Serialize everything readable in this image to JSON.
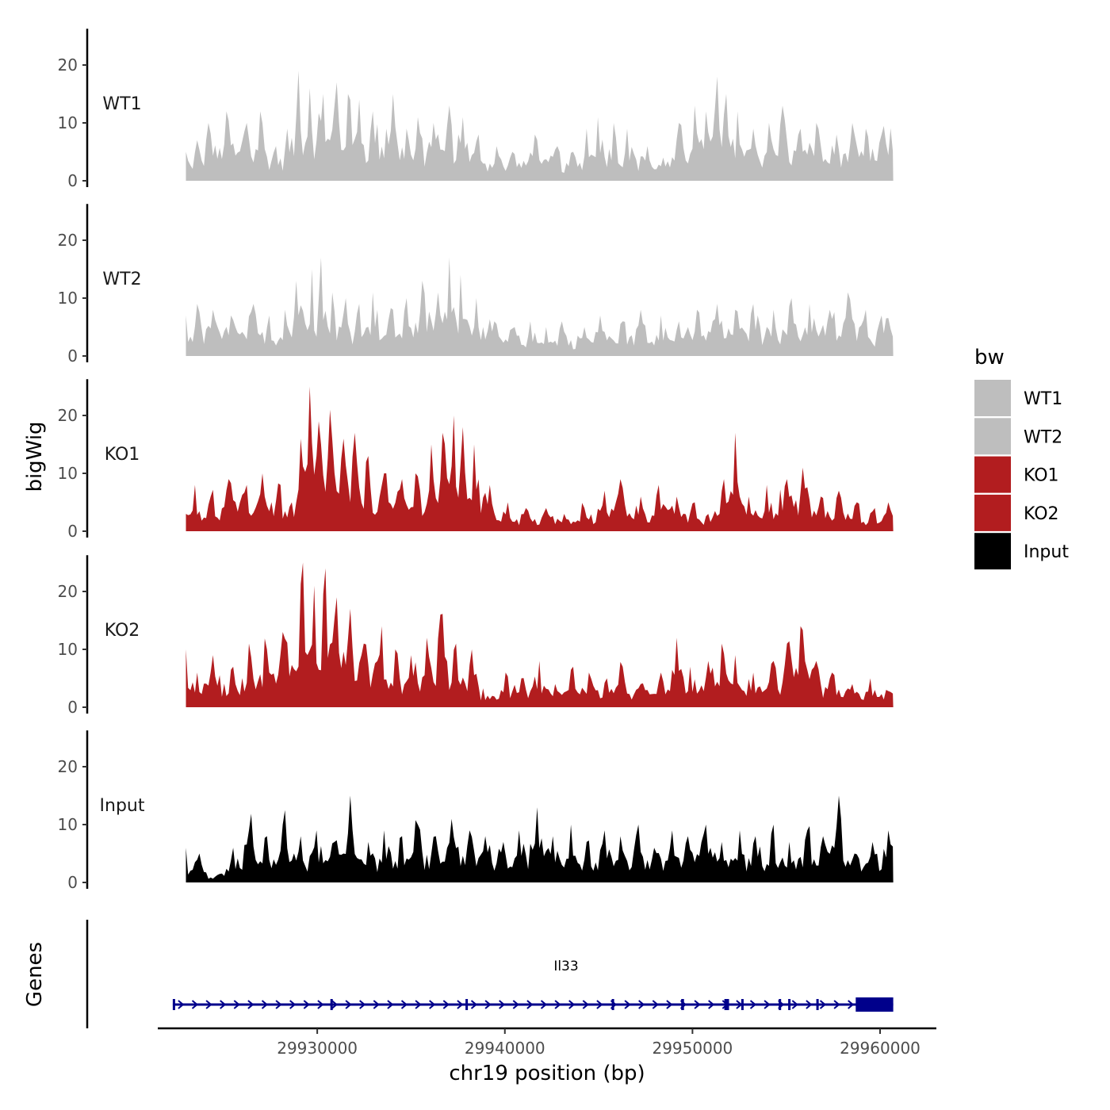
{
  "chart_data": {
    "type": "area",
    "title": "",
    "ylabel": "bigWig",
    "xlabel": "chr19 position (bp)",
    "genes_label": "Genes",
    "xlim": [
      29921500,
      29963000
    ],
    "ylim": [
      0,
      27
    ],
    "yticks": [
      0,
      10,
      20
    ],
    "ytick_labels": [
      "0",
      "10",
      "20"
    ],
    "xticks": [
      29930000,
      29940000,
      29950000,
      29960000
    ],
    "xtick_labels": [
      "29930000",
      "29940000",
      "29950000",
      "29960000"
    ],
    "legend": {
      "title": "bw",
      "position": "right",
      "entries": [
        {
          "label": "WT1",
          "color": "#bebebe"
        },
        {
          "label": "WT2",
          "color": "#bebebe"
        },
        {
          "label": "KO1",
          "color": "#b21d1f"
        },
        {
          "label": "KO2",
          "color": "#b21d1f"
        },
        {
          "label": "Input",
          "color": "#000000"
        }
      ]
    },
    "series": [
      {
        "name": "WT1",
        "color": "#bebebe",
        "start": 29923000,
        "end": 29960700,
        "peaks": [
          [
            29922800,
            5
          ],
          [
            29923600,
            7
          ],
          [
            29924200,
            10
          ],
          [
            29925200,
            12
          ],
          [
            29926200,
            10
          ],
          [
            29927000,
            12
          ],
          [
            29927800,
            6
          ],
          [
            29928400,
            9
          ],
          [
            29929000,
            19
          ],
          [
            29929600,
            16
          ],
          [
            29930300,
            15
          ],
          [
            29931000,
            17
          ],
          [
            29931700,
            15
          ],
          [
            29932200,
            14
          ],
          [
            29933000,
            12
          ],
          [
            29934000,
            15
          ],
          [
            29934800,
            9
          ],
          [
            29935400,
            11
          ],
          [
            29936200,
            10
          ],
          [
            29937000,
            13
          ],
          [
            29937800,
            11
          ],
          [
            29938600,
            8
          ],
          [
            29939600,
            6
          ],
          [
            29940400,
            5
          ],
          [
            29941600,
            8
          ],
          [
            29942800,
            6
          ],
          [
            29943600,
            5
          ],
          [
            29944400,
            9
          ],
          [
            29945000,
            11
          ],
          [
            29945800,
            10
          ],
          [
            29946500,
            9
          ],
          [
            29947600,
            6
          ],
          [
            29948400,
            4
          ],
          [
            29949300,
            10
          ],
          [
            29950100,
            13
          ],
          [
            29950700,
            12
          ],
          [
            29951300,
            18
          ],
          [
            29951800,
            15
          ],
          [
            29952400,
            12
          ],
          [
            29953200,
            9
          ],
          [
            29954100,
            10
          ],
          [
            29954800,
            13
          ],
          [
            29955800,
            9
          ],
          [
            29956600,
            10
          ],
          [
            29957700,
            8
          ],
          [
            29958500,
            10
          ],
          [
            29959300,
            9
          ],
          [
            29960100,
            8
          ]
        ],
        "summary": {
          "max": 19,
          "peak_positions": [
            29929000,
            29951300
          ]
        }
      },
      {
        "name": "WT2",
        "color": "#bebebe",
        "start": 29923000,
        "end": 29960700,
        "peaks": [
          [
            29922800,
            7
          ],
          [
            29923600,
            9
          ],
          [
            29924400,
            8
          ],
          [
            29925400,
            7
          ],
          [
            29926600,
            9
          ],
          [
            29927400,
            7
          ],
          [
            29928300,
            8
          ],
          [
            29928900,
            13
          ],
          [
            29929700,
            15
          ],
          [
            29930200,
            17
          ],
          [
            29930800,
            11
          ],
          [
            29931500,
            10
          ],
          [
            29932200,
            9
          ],
          [
            29933000,
            11
          ],
          [
            29934000,
            8
          ],
          [
            29934800,
            10
          ],
          [
            29935600,
            13
          ],
          [
            29936400,
            11
          ],
          [
            29937100,
            17
          ],
          [
            29937700,
            14
          ],
          [
            29938500,
            10
          ],
          [
            29939500,
            6
          ],
          [
            29940500,
            5
          ],
          [
            29941400,
            6
          ],
          [
            29942200,
            5
          ],
          [
            29943000,
            6
          ],
          [
            29944200,
            5
          ],
          [
            29945100,
            7
          ],
          [
            29946300,
            6
          ],
          [
            29947300,
            8
          ],
          [
            29948300,
            7
          ],
          [
            29949300,
            6
          ],
          [
            29950300,
            8
          ],
          [
            29951300,
            9
          ],
          [
            29952300,
            8
          ],
          [
            29953300,
            9
          ],
          [
            29954300,
            8
          ],
          [
            29955300,
            10
          ],
          [
            29956300,
            9
          ],
          [
            29957300,
            8
          ],
          [
            29958300,
            11
          ],
          [
            29959300,
            8
          ],
          [
            29960100,
            7
          ]
        ],
        "summary": {
          "max": 17.5,
          "peak_positions": [
            29930200,
            29937100
          ]
        }
      },
      {
        "name": "KO1",
        "color": "#b21d1f",
        "start": 29923000,
        "end": 29960700,
        "peaks": [
          [
            29922800,
            3
          ],
          [
            29923500,
            8
          ],
          [
            29924300,
            6
          ],
          [
            29925300,
            9
          ],
          [
            29926200,
            8
          ],
          [
            29927100,
            10
          ],
          [
            29928000,
            8
          ],
          [
            29928600,
            5
          ],
          [
            29929100,
            16
          ],
          [
            29929600,
            25
          ],
          [
            29930100,
            19
          ],
          [
            29930700,
            21
          ],
          [
            29931400,
            16
          ],
          [
            29932000,
            17
          ],
          [
            29932700,
            13
          ],
          [
            29933600,
            10
          ],
          [
            29934500,
            9
          ],
          [
            29935300,
            10
          ],
          [
            29936100,
            15
          ],
          [
            29936700,
            17
          ],
          [
            29937300,
            20
          ],
          [
            29937800,
            18
          ],
          [
            29938400,
            15
          ],
          [
            29939200,
            8
          ],
          [
            29940200,
            5
          ],
          [
            29941100,
            4
          ],
          [
            29942200,
            4
          ],
          [
            29943200,
            3
          ],
          [
            29944200,
            4
          ],
          [
            29945300,
            7
          ],
          [
            29946200,
            9
          ],
          [
            29947200,
            6
          ],
          [
            29948200,
            8
          ],
          [
            29949200,
            6
          ],
          [
            29950100,
            5
          ],
          [
            29950800,
            3
          ],
          [
            29951700,
            9
          ],
          [
            29952300,
            17
          ],
          [
            29953000,
            6
          ],
          [
            29954000,
            8
          ],
          [
            29955000,
            9
          ],
          [
            29955900,
            11
          ],
          [
            29956900,
            6
          ],
          [
            29957800,
            7
          ],
          [
            29958800,
            5
          ],
          [
            29959700,
            4
          ],
          [
            29960400,
            5
          ]
        ],
        "summary": {
          "max": 25.5,
          "peak_positions": [
            29929600,
            29937300,
            29952300
          ]
        }
      },
      {
        "name": "KO2",
        "color": "#b21d1f",
        "start": 29923000,
        "end": 29960700,
        "peaks": [
          [
            29922800,
            10
          ],
          [
            29923600,
            6
          ],
          [
            29924500,
            9
          ],
          [
            29925500,
            7
          ],
          [
            29926400,
            11
          ],
          [
            29927300,
            10
          ],
          [
            29928200,
            13
          ],
          [
            29929200,
            25
          ],
          [
            29929800,
            21
          ],
          [
            29930400,
            24
          ],
          [
            29931000,
            19
          ],
          [
            29931800,
            17
          ],
          [
            29932500,
            11
          ],
          [
            29933400,
            14
          ],
          [
            29934200,
            10
          ],
          [
            29935000,
            9
          ],
          [
            29935800,
            12
          ],
          [
            29936600,
            16
          ],
          [
            29937400,
            11
          ],
          [
            29938300,
            10
          ],
          [
            29939100,
            2
          ],
          [
            29940000,
            6
          ],
          [
            29940900,
            5
          ],
          [
            29941800,
            8
          ],
          [
            29942700,
            4
          ],
          [
            29943600,
            7
          ],
          [
            29944500,
            6
          ],
          [
            29945400,
            5
          ],
          [
            29946300,
            7
          ],
          [
            29947300,
            4
          ],
          [
            29948300,
            6
          ],
          [
            29949200,
            12
          ],
          [
            29949900,
            7
          ],
          [
            29950800,
            8
          ],
          [
            29951600,
            11
          ],
          [
            29952300,
            9
          ],
          [
            29953200,
            6
          ],
          [
            29954300,
            8
          ],
          [
            29955100,
            11
          ],
          [
            29955800,
            14
          ],
          [
            29956600,
            8
          ],
          [
            29957500,
            6
          ],
          [
            29958500,
            4
          ],
          [
            29959500,
            5
          ],
          [
            29960300,
            3
          ]
        ],
        "summary": {
          "max": 25.5,
          "peak_positions": [
            29929200,
            29930400
          ]
        }
      },
      {
        "name": "Input",
        "color": "#000000",
        "start": 29923000,
        "end": 29960700,
        "peaks": [
          [
            29922800,
            6
          ],
          [
            29923700,
            5
          ],
          [
            29924600,
            1
          ],
          [
            29925500,
            6
          ],
          [
            29926400,
            9
          ],
          [
            29927300,
            8
          ],
          [
            29928200,
            10
          ],
          [
            29929100,
            8
          ],
          [
            29930000,
            9
          ],
          [
            29930900,
            7
          ],
          [
            29931800,
            15
          ],
          [
            29932700,
            7
          ],
          [
            29933600,
            9
          ],
          [
            29934500,
            8
          ],
          [
            29935400,
            10
          ],
          [
            29936300,
            8
          ],
          [
            29937200,
            11
          ],
          [
            29938100,
            9
          ],
          [
            29939000,
            8
          ],
          [
            29939900,
            7
          ],
          [
            29940800,
            9
          ],
          [
            29941700,
            13
          ],
          [
            29942600,
            8
          ],
          [
            29943500,
            10
          ],
          [
            29944400,
            7
          ],
          [
            29945300,
            9
          ],
          [
            29946200,
            8
          ],
          [
            29947100,
            10
          ],
          [
            29948000,
            6
          ],
          [
            29948900,
            9
          ],
          [
            29949800,
            8
          ],
          [
            29950700,
            10
          ],
          [
            29951600,
            7
          ],
          [
            29952500,
            9
          ],
          [
            29953400,
            8
          ],
          [
            29954300,
            10
          ],
          [
            29955200,
            7
          ],
          [
            29956100,
            9
          ],
          [
            29957000,
            8
          ],
          [
            29957800,
            15
          ],
          [
            29958700,
            5
          ],
          [
            29959600,
            7
          ],
          [
            29960400,
            9
          ]
        ],
        "summary": {
          "max": 15.5,
          "peak_positions": [
            29931800,
            29957800
          ]
        }
      }
    ],
    "gene": {
      "name": "Il33",
      "start": 29922300,
      "end": 29960700,
      "strand": "+",
      "color": "#00008b",
      "exons": [
        [
          29922300,
          29922400
        ],
        [
          29930700,
          29930800
        ],
        [
          29937900,
          29938000
        ],
        [
          29945700,
          29945800
        ],
        [
          29949400,
          29949550
        ],
        [
          29951700,
          29951950
        ],
        [
          29952600,
          29952700
        ],
        [
          29954600,
          29954700
        ],
        [
          29955100,
          29955200
        ],
        [
          29956600,
          29956700
        ],
        [
          29958700,
          29960700
        ]
      ]
    }
  }
}
